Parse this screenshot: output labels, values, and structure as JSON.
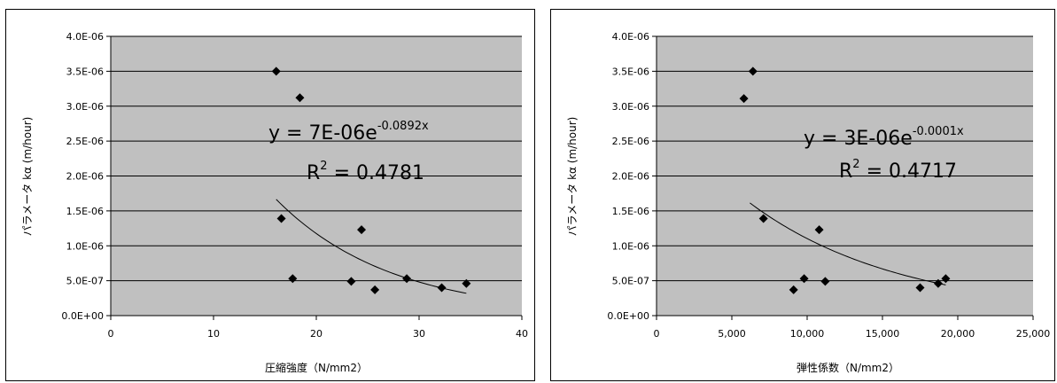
{
  "chart_data": [
    {
      "type": "scatter",
      "xlabel": "圧縮強度（N/mm2）",
      "ylabel": "パラメータ kα (m/hour)",
      "xlim": [
        0,
        40
      ],
      "ylim": [
        0,
        4e-06
      ],
      "x_ticks": [
        "0",
        "10",
        "20",
        "30",
        "40"
      ],
      "y_ticks": [
        "0.0E+00",
        "5.0E-07",
        "1.0E-06",
        "1.5E-06",
        "2.0E-06",
        "2.5E-06",
        "3.0E-06",
        "3.5E-06",
        "4.0E-06"
      ],
      "grid": "horizontal",
      "points": [
        {
          "x": 16.1,
          "y": 3.5e-06
        },
        {
          "x": 18.4,
          "y": 3.12e-06
        },
        {
          "x": 16.6,
          "y": 1.39e-06
        },
        {
          "x": 24.4,
          "y": 1.23e-06
        },
        {
          "x": 17.7,
          "y": 5.3e-07
        },
        {
          "x": 23.4,
          "y": 4.9e-07
        },
        {
          "x": 25.7,
          "y": 3.7e-07
        },
        {
          "x": 28.8,
          "y": 5.3e-07
        },
        {
          "x": 32.2,
          "y": 4e-07
        },
        {
          "x": 34.6,
          "y": 4.6e-07
        }
      ],
      "trendline": {
        "type": "exponential",
        "a": 7e-06,
        "b": -0.0892,
        "x_range": [
          16.1,
          34.6
        ]
      },
      "equation": {
        "prefix": "y = 7E-06e",
        "exponent": "-0.0892x"
      },
      "r2": {
        "prefix": "R",
        "sup": "2",
        "value": " = 0.4781"
      }
    },
    {
      "type": "scatter",
      "xlabel": "弾性係数（N/mm2）",
      "ylabel": "パラメータ kα (m/hour)",
      "xlim": [
        0,
        25000
      ],
      "ylim": [
        0,
        4e-06
      ],
      "x_ticks": [
        "0",
        "5,000",
        "10,000",
        "15,000",
        "20,000",
        "25,000"
      ],
      "y_ticks": [
        "0.0E+00",
        "5.0E-07",
        "1.0E-06",
        "1.5E-06",
        "2.0E-06",
        "2.5E-06",
        "3.0E-06",
        "3.5E-06",
        "4.0E-06"
      ],
      "grid": "horizontal",
      "points": [
        {
          "x": 5800,
          "y": 3.11e-06
        },
        {
          "x": 6400,
          "y": 3.5e-06
        },
        {
          "x": 7100,
          "y": 1.39e-06
        },
        {
          "x": 10800,
          "y": 1.23e-06
        },
        {
          "x": 9100,
          "y": 3.7e-07
        },
        {
          "x": 9800,
          "y": 5.3e-07
        },
        {
          "x": 11200,
          "y": 4.9e-07
        },
        {
          "x": 17500,
          "y": 4e-07
        },
        {
          "x": 18700,
          "y": 4.6e-07
        },
        {
          "x": 19200,
          "y": 5.3e-07
        }
      ],
      "trendline": {
        "type": "exponential",
        "a": 3e-06,
        "b": -0.0001,
        "x_range": [
          6200,
          19200
        ]
      },
      "equation": {
        "prefix": "y = 3E-06e",
        "exponent": "-0.0001x"
      },
      "r2": {
        "prefix": "R",
        "sup": "2",
        "value": " = 0.4717"
      }
    }
  ]
}
